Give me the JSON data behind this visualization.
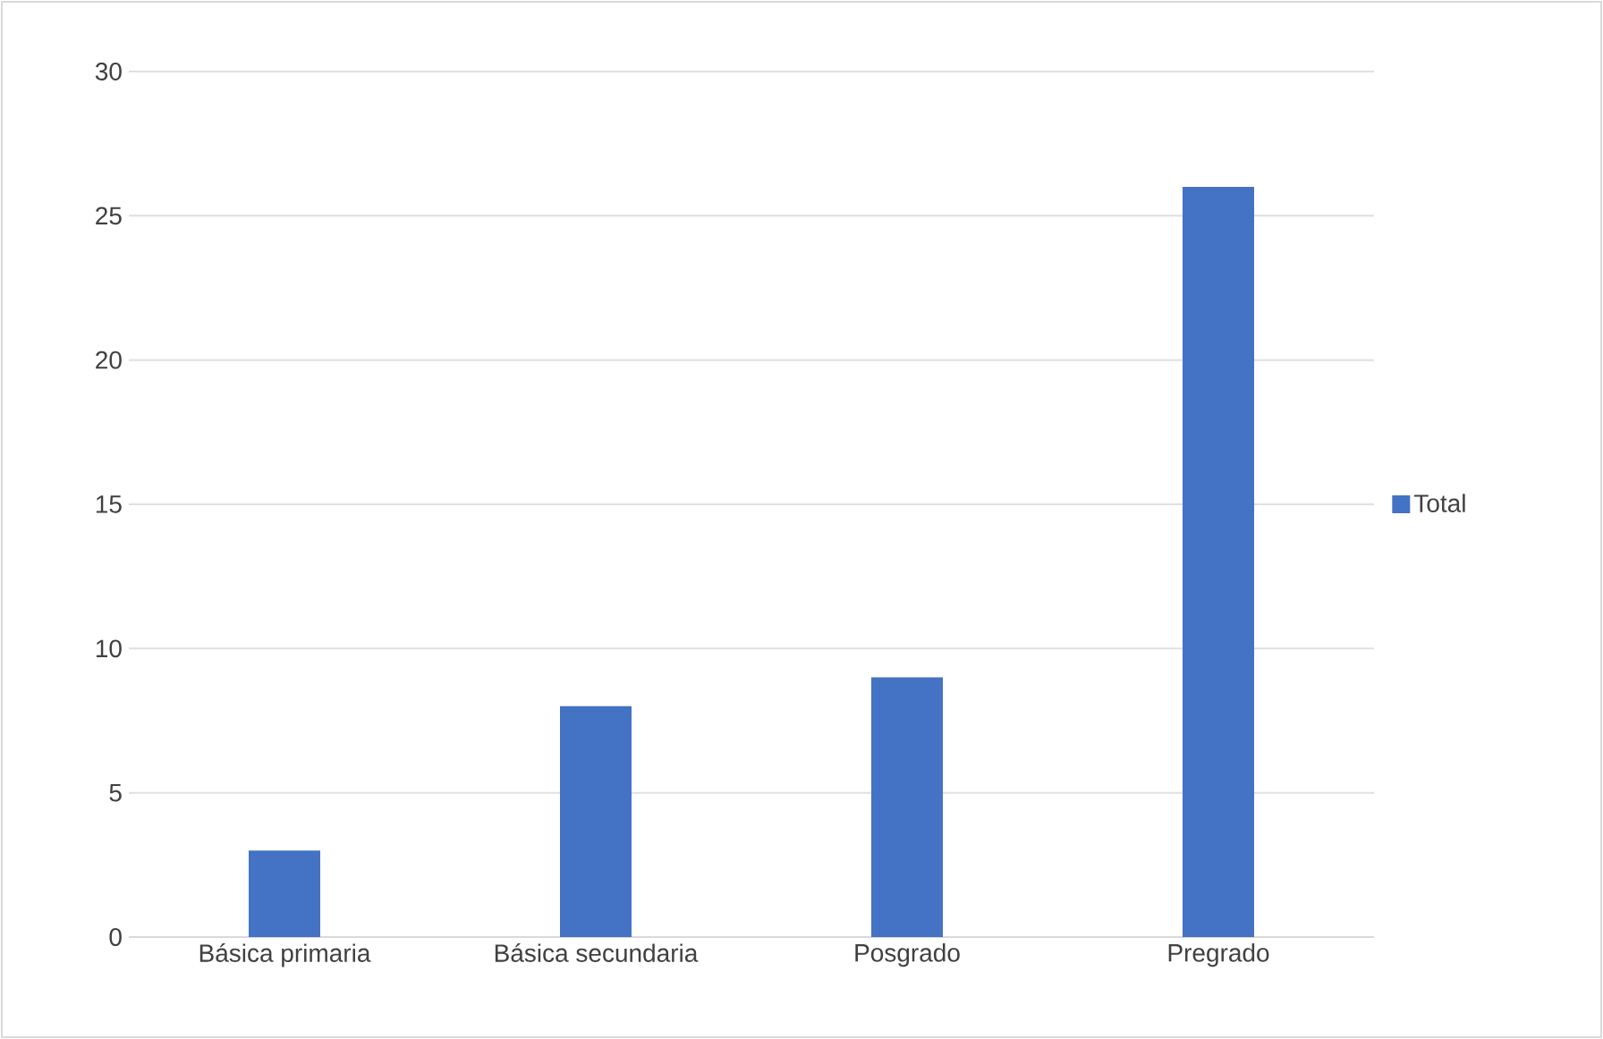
{
  "chart_data": {
    "type": "bar",
    "categories": [
      "Básica primaria",
      "Básica secundaria",
      "Posgrado",
      "Pregrado"
    ],
    "series": [
      {
        "name": "Total",
        "color": "#4472c4",
        "values": [
          3,
          8,
          9,
          26
        ]
      }
    ],
    "ylim": [
      0,
      30
    ],
    "yticks": [
      0,
      5,
      10,
      15,
      20,
      25,
      30
    ],
    "grid": "y",
    "legend": "right"
  }
}
